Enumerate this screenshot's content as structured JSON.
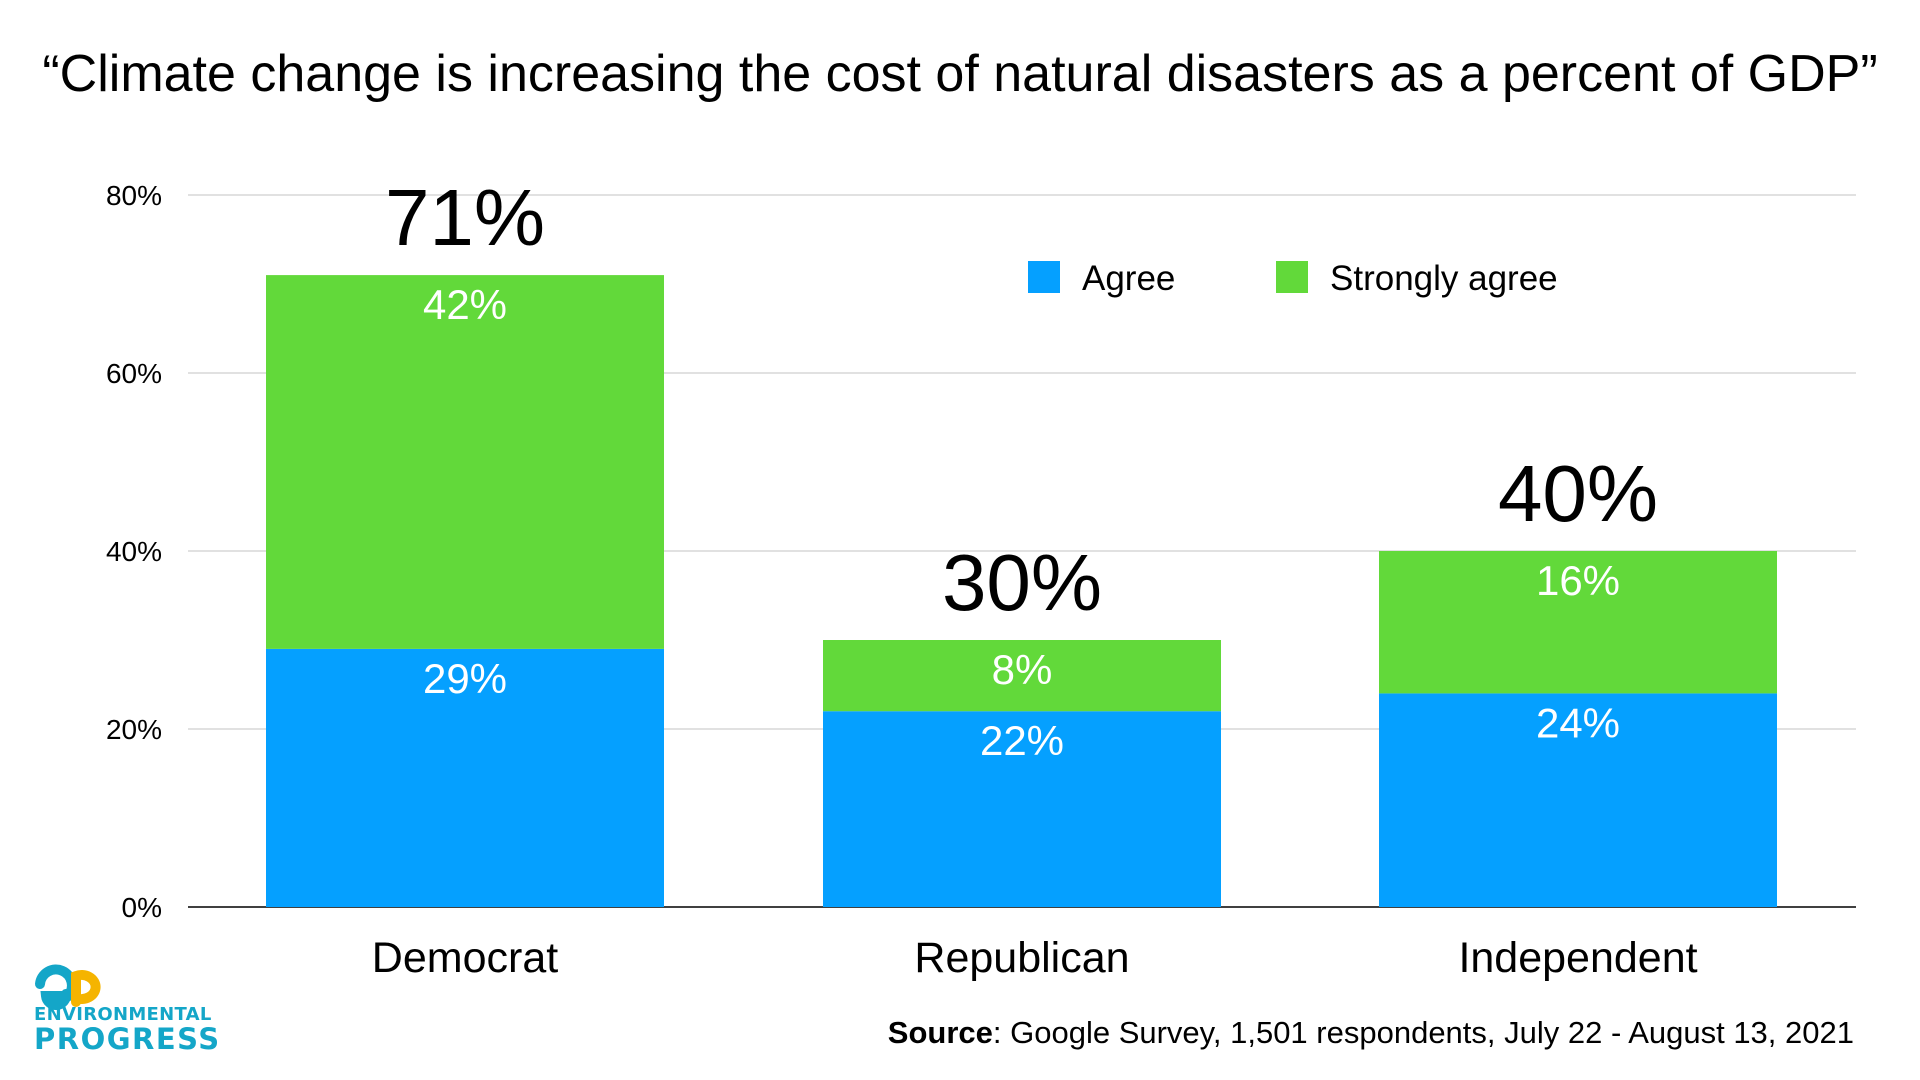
{
  "chart_data": {
    "type": "bar",
    "stacked": true,
    "title": "“Climate change is increasing the cost of natural disasters as a percent of GDP”",
    "categories": [
      "Democrat",
      "Republican",
      "Independent"
    ],
    "series": [
      {
        "name": "Agree",
        "values": [
          29,
          22,
          24
        ],
        "labels": [
          "29%",
          "22%",
          "24%"
        ],
        "color": "#05a0ff"
      },
      {
        "name": "Strongly agree",
        "values": [
          42,
          8,
          16
        ],
        "labels": [
          "42%",
          "8%",
          "16%"
        ],
        "color": "#62d93a"
      }
    ],
    "totals": [
      71,
      30,
      40
    ],
    "total_labels": [
      "71%",
      "30%",
      "40%"
    ],
    "ylim": [
      0,
      80
    ],
    "yticks": [
      0,
      20,
      40,
      60,
      80
    ],
    "ytick_labels": [
      "0%",
      "20%",
      "40%",
      "60%",
      "80%"
    ],
    "xlabel": "",
    "ylabel": "",
    "grid": true,
    "legend_position": "top-right"
  },
  "source": {
    "label": "Source",
    "text": ": Google Survey, 1,501 respondents, July 22 - August 13, 2021"
  },
  "logo": {
    "mark": "ep",
    "line1": "ENVIRONMENTAL",
    "line2": "PROGRESS",
    "color": "#14a6c8"
  }
}
